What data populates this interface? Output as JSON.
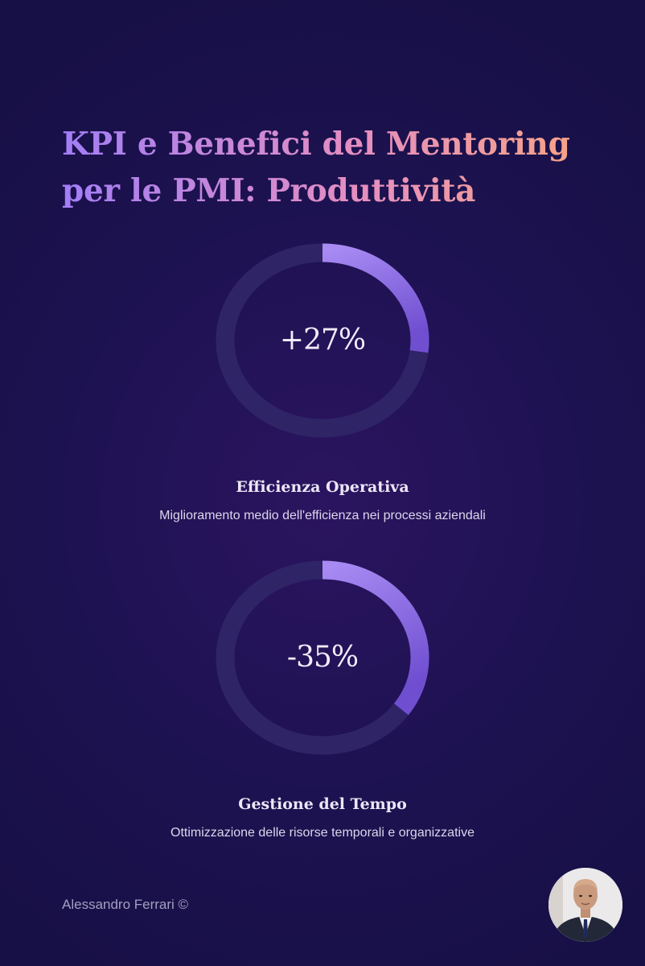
{
  "title": {
    "line1": "KPI e Benefici del Mentoring",
    "line2": "per le PMI: Produttività"
  },
  "kpis": [
    {
      "value": "+27%",
      "progress": 0.27,
      "label": "Efficienza Operativa",
      "description": "Miglioramento medio dell'efficienza nei processi aziendali"
    },
    {
      "value": "-35%",
      "progress": 0.35,
      "label": "Gestione del Tempo",
      "description": "Ottimizzazione delle risorse temporali e organizzative"
    }
  ],
  "footer": {
    "author": "Alessandro Ferrari ©"
  },
  "colors": {
    "ring_track": "#2f2466",
    "ring_fill_start": "#a88af3",
    "ring_fill_end": "#6f4fd0",
    "title_gradient_start": "#a27ef7",
    "title_gradient_end": "#f9a582"
  },
  "icons": {
    "avatar": "author-portrait"
  }
}
